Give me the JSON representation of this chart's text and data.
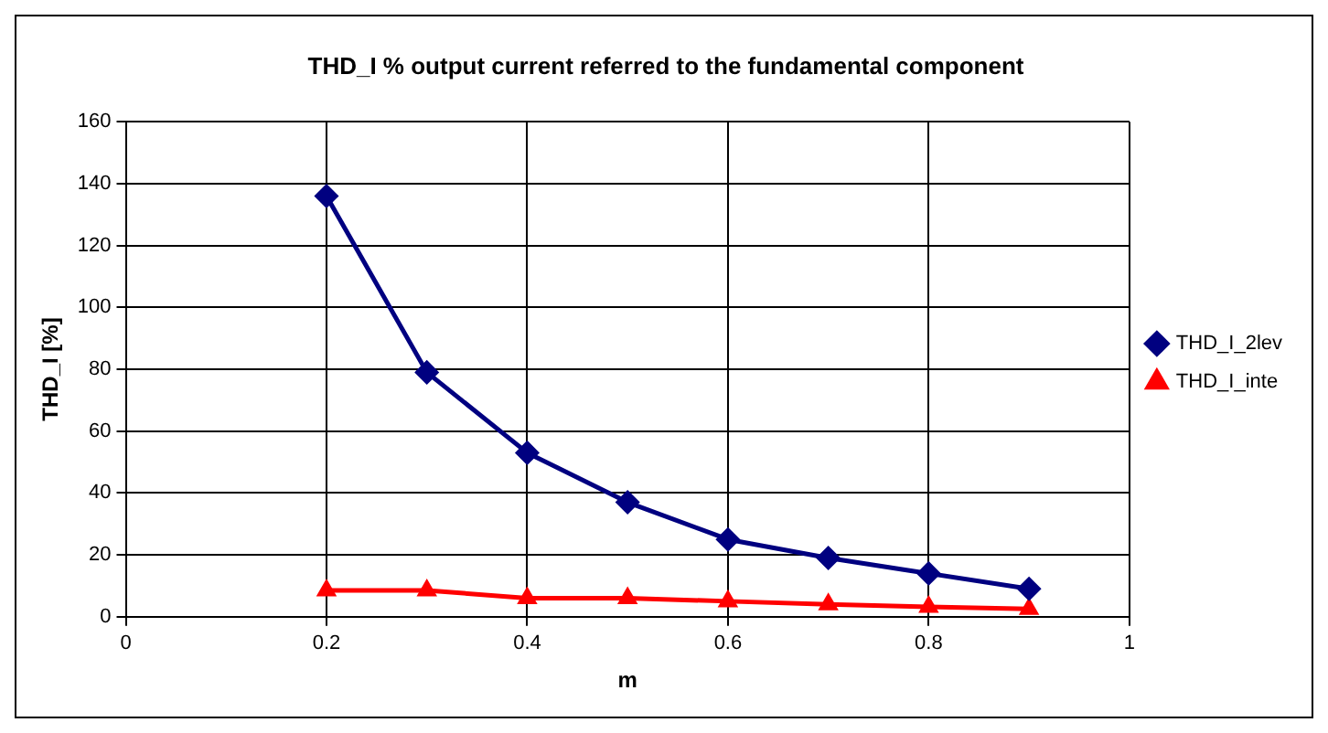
{
  "chart_data": {
    "type": "line",
    "title": "THD_I % output current referred to the fundamental component",
    "xlabel": "m",
    "ylabel": "THD_I [%]",
    "x": [
      0.2,
      0.3,
      0.4,
      0.5,
      0.6,
      0.7,
      0.8,
      0.9
    ],
    "series": [
      {
        "name": "THD_I_2lev",
        "color": "#000080",
        "marker": "diamond",
        "values": [
          136,
          79,
          53,
          37,
          25,
          19,
          14,
          9
        ]
      },
      {
        "name": "THD_I_inte",
        "color": "#ff0000",
        "marker": "triangle",
        "values": [
          8.5,
          8.5,
          6,
          6,
          5,
          4,
          3.2,
          2.5
        ]
      }
    ],
    "xlim": [
      0,
      1
    ],
    "xticks": [
      0,
      0.2,
      0.4,
      0.6,
      0.8,
      1
    ],
    "ylim": [
      0,
      160
    ],
    "yticks": [
      0,
      20,
      40,
      60,
      80,
      100,
      120,
      140,
      160
    ],
    "grid": true,
    "legend": "right",
    "line_style": "solid"
  }
}
